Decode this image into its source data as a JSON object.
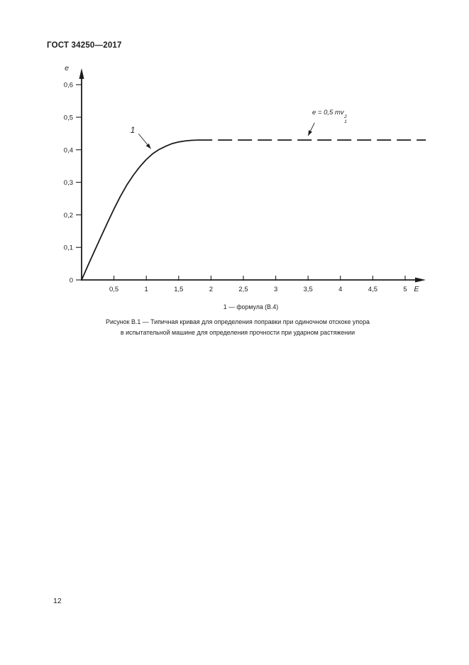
{
  "header": {
    "title": "ГОСТ 34250—2017"
  },
  "chart_data": {
    "type": "line",
    "title": "",
    "xlabel": "E",
    "ylabel": "e",
    "xlim": [
      0,
      5.35
    ],
    "ylim": [
      0,
      0.65
    ],
    "grid": false,
    "legend_position": "none",
    "x_ticks": [
      0.5,
      1,
      1.5,
      2,
      2.5,
      3,
      3.5,
      4,
      4.5,
      5
    ],
    "x_tick_labels": [
      "0,5",
      "1",
      "1,5",
      "2",
      "2,5",
      "3",
      "3,5",
      "4",
      "4,5",
      "5"
    ],
    "y_ticks": [
      0,
      0.1,
      0.2,
      0.3,
      0.4,
      0.5,
      0.6
    ],
    "y_tick_labels": [
      "0",
      "0,1",
      "0,2",
      "0,3",
      "0,4",
      "0,5",
      "0,6"
    ],
    "plateau_value": 0.43,
    "series": [
      {
        "name": "1",
        "style": "solid",
        "points": [
          [
            0,
            0
          ],
          [
            0.1,
            0.045
          ],
          [
            0.2,
            0.089
          ],
          [
            0.3,
            0.133
          ],
          [
            0.4,
            0.176
          ],
          [
            0.5,
            0.218
          ],
          [
            0.6,
            0.257
          ],
          [
            0.7,
            0.292
          ],
          [
            0.8,
            0.322
          ],
          [
            0.9,
            0.348
          ],
          [
            1.0,
            0.37
          ],
          [
            1.1,
            0.388
          ],
          [
            1.2,
            0.401
          ],
          [
            1.3,
            0.411
          ],
          [
            1.4,
            0.419
          ],
          [
            1.5,
            0.424
          ],
          [
            1.6,
            0.427
          ],
          [
            1.7,
            0.429
          ],
          [
            1.8,
            0.43
          ]
        ]
      },
      {
        "name": "1-plateau",
        "style": "dashed",
        "points": [
          [
            1.8,
            0.43
          ],
          [
            5.32,
            0.43
          ]
        ]
      }
    ],
    "annotations": [
      {
        "id": "curve-number",
        "text": "1",
        "x": 0.79,
        "y": 0.452,
        "leader": [
          [
            0.88,
            0.449
          ],
          [
            1.07,
            0.403
          ]
        ]
      },
      {
        "id": "formula-label",
        "parts": {
          "prefix": "e = 0,5 m",
          "variable": "v",
          "sup": "2",
          "sub": "1"
        },
        "leader": [
          [
            3.6,
            0.483
          ],
          [
            3.5,
            0.443
          ]
        ]
      }
    ]
  },
  "figure": {
    "legend": "1 — формула (В.4)",
    "caption_line1": "Рисунок В.1 — Типичная кривая для определения поправки при одиночном отскоке упора",
    "caption_line2": "в испытательной машине для определения прочности при ударном растяжении"
  },
  "footer": {
    "page_number": "12"
  }
}
